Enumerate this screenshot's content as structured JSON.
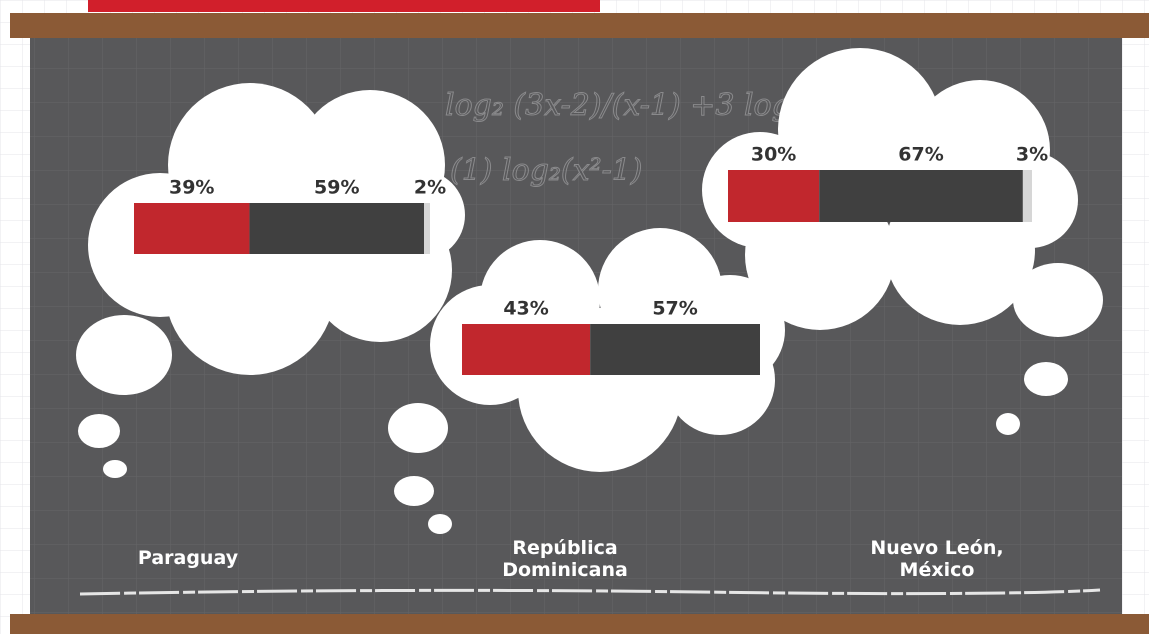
{
  "chart_data": {
    "type": "stacked-bar",
    "categories": [
      "Paraguay",
      "República Dominicana",
      "Nuevo León, México"
    ],
    "xlim": [
      0,
      100
    ],
    "series": [
      {
        "color": "#c1272d",
        "values": [
          39,
          43,
          30
        ],
        "value_labels": [
          "39%",
          "43%",
          "30%"
        ]
      },
      {
        "color": "#404040",
        "values": [
          59,
          57,
          67
        ],
        "value_labels": [
          "59%",
          "57%",
          "67%"
        ]
      },
      {
        "color": "#d6d6d6",
        "values": [
          2,
          null,
          3
        ],
        "value_labels": [
          "2%",
          null,
          "3%"
        ]
      }
    ],
    "chalk_notes": [
      "log₂ (3x-2)/(x-1) +3 log",
      "(1) log₂(x²-1)"
    ]
  }
}
